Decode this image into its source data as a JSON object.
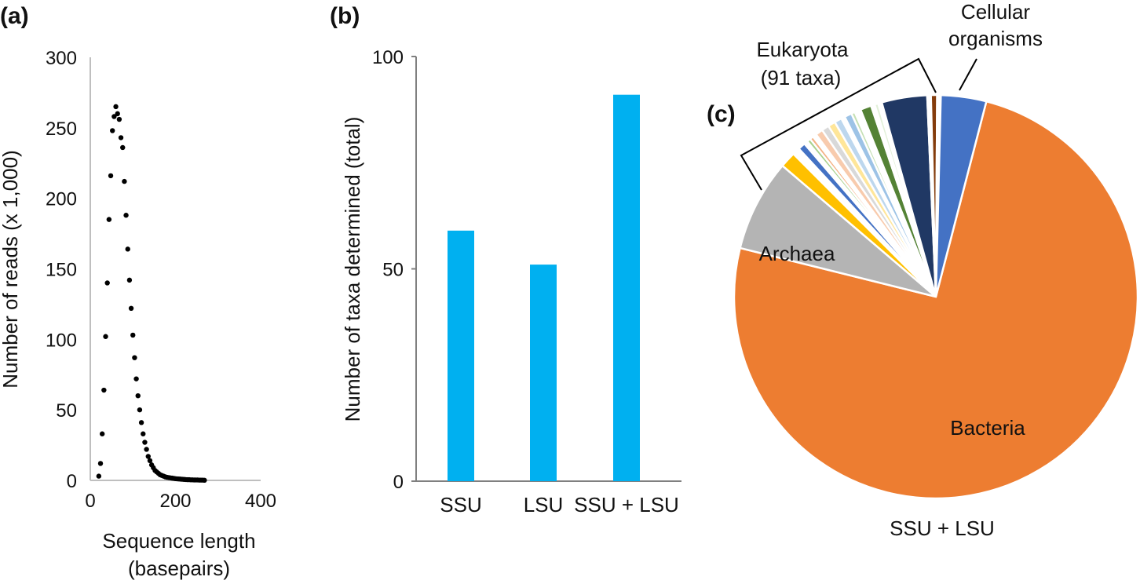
{
  "panels": {
    "a": "(a)",
    "b": "(b)",
    "c": "(c)"
  },
  "chart_data": [
    {
      "type": "scatter",
      "panel": "(a)",
      "xlabel": [
        "Sequence length",
        "(basepairs)"
      ],
      "ylabel": "Number of reads (x 1,000)",
      "xlim": [
        0,
        400
      ],
      "ylim": [
        0,
        300
      ],
      "xticks": [
        0,
        200,
        400
      ],
      "yticks": [
        0,
        50,
        100,
        150,
        200,
        250,
        300
      ],
      "marker_color": "#000000",
      "x": [
        20,
        24,
        28,
        32,
        36,
        40,
        44,
        48,
        52,
        56,
        60,
        64,
        68,
        72,
        76,
        80,
        84,
        88,
        92,
        96,
        100,
        104,
        108,
        112,
        116,
        120,
        124,
        128,
        132,
        136,
        140,
        144,
        148,
        152,
        156,
        160,
        164,
        168,
        172,
        176,
        180,
        184,
        188,
        192,
        196,
        200,
        204,
        208,
        212,
        216,
        220,
        224,
        228,
        232,
        236,
        240,
        244,
        248,
        252,
        256,
        260,
        264,
        268
      ],
      "y": [
        3,
        12,
        33,
        64,
        102,
        140,
        185,
        216,
        248,
        258,
        265,
        260,
        256,
        243,
        236,
        212,
        188,
        164,
        142,
        122,
        103,
        87,
        72,
        60,
        50,
        41,
        33,
        27,
        22,
        17,
        14,
        11,
        9,
        7,
        6,
        5,
        4,
        3.5,
        3,
        2.5,
        2.2,
        2,
        1.8,
        1.6,
        1.4,
        1.2,
        1.1,
        1,
        0.9,
        0.8,
        0.7,
        0.6,
        0.5,
        0.5,
        0.4,
        0.4,
        0.3,
        0.3,
        0.3,
        0.2,
        0.2,
        0.2,
        0.1
      ]
    },
    {
      "type": "bar",
      "panel": "(b)",
      "categories": [
        "SSU",
        "LSU",
        "SSU + LSU"
      ],
      "values": [
        59,
        51,
        91
      ],
      "ylabel": "Number of taxa determined (total)",
      "ylim": [
        0,
        100
      ],
      "yticks": [
        0,
        50,
        100
      ],
      "bar_color": "#00B0F0"
    },
    {
      "type": "pie",
      "panel": "(c)",
      "caption": "SSU + LSU",
      "annotations": {
        "eukaryota": [
          "Eukaryota",
          "(91 taxa)"
        ],
        "cellular": [
          "Cellular",
          "organisms"
        ]
      },
      "slices": [
        {
          "label": "Bacteria",
          "value": 76.2,
          "color": "#ED7D31"
        },
        {
          "label": "Archaea",
          "value": 7.5,
          "color": "#B4B4B4"
        },
        {
          "label": "",
          "value": 1.3,
          "color": "#FFC000"
        },
        {
          "label": "",
          "value": 0.6,
          "color": "#FFFFFF"
        },
        {
          "label": "",
          "value": 0.6,
          "color": "#4472C4"
        },
        {
          "label": "",
          "value": 0.3,
          "color": "#FFFFFF"
        },
        {
          "label": "",
          "value": 0.3,
          "color": "#A9D18E"
        },
        {
          "label": "",
          "value": 0.3,
          "color": "#F4B183"
        },
        {
          "label": "",
          "value": 0.3,
          "color": "#FFFFFF"
        },
        {
          "label": "",
          "value": 0.6,
          "color": "#F8CBAD"
        },
        {
          "label": "",
          "value": 0.6,
          "color": "#D9D9D9"
        },
        {
          "label": "",
          "value": 0.6,
          "color": "#FFE699"
        },
        {
          "label": "",
          "value": 0.6,
          "color": "#BDD7EE"
        },
        {
          "label": "",
          "value": 0.3,
          "color": "#FFFFFF"
        },
        {
          "label": "",
          "value": 0.6,
          "color": "#9DC3E6"
        },
        {
          "label": "",
          "value": 0.3,
          "color": "#C5E0B4"
        },
        {
          "label": "",
          "value": 0.5,
          "color": "#FFFFFF"
        },
        {
          "label": "",
          "value": 0.9,
          "color": "#548235"
        },
        {
          "label": "",
          "value": 0.3,
          "color": "#FFFFFF"
        },
        {
          "label": "",
          "value": 0.3,
          "color": "#E2F0D9"
        },
        {
          "label": "",
          "value": 0.3,
          "color": "#FFFFFF"
        },
        {
          "label": "",
          "value": 3.7,
          "color": "#203864"
        },
        {
          "label": "",
          "value": 0.3,
          "color": "#FFFFFF"
        },
        {
          "label": "",
          "value": 0.5,
          "color": "#843C0C"
        },
        {
          "label": "",
          "value": 0.3,
          "color": "#FFFFFF"
        },
        {
          "label": "",
          "value": 3.7,
          "color": "#4472C4"
        }
      ]
    }
  ]
}
